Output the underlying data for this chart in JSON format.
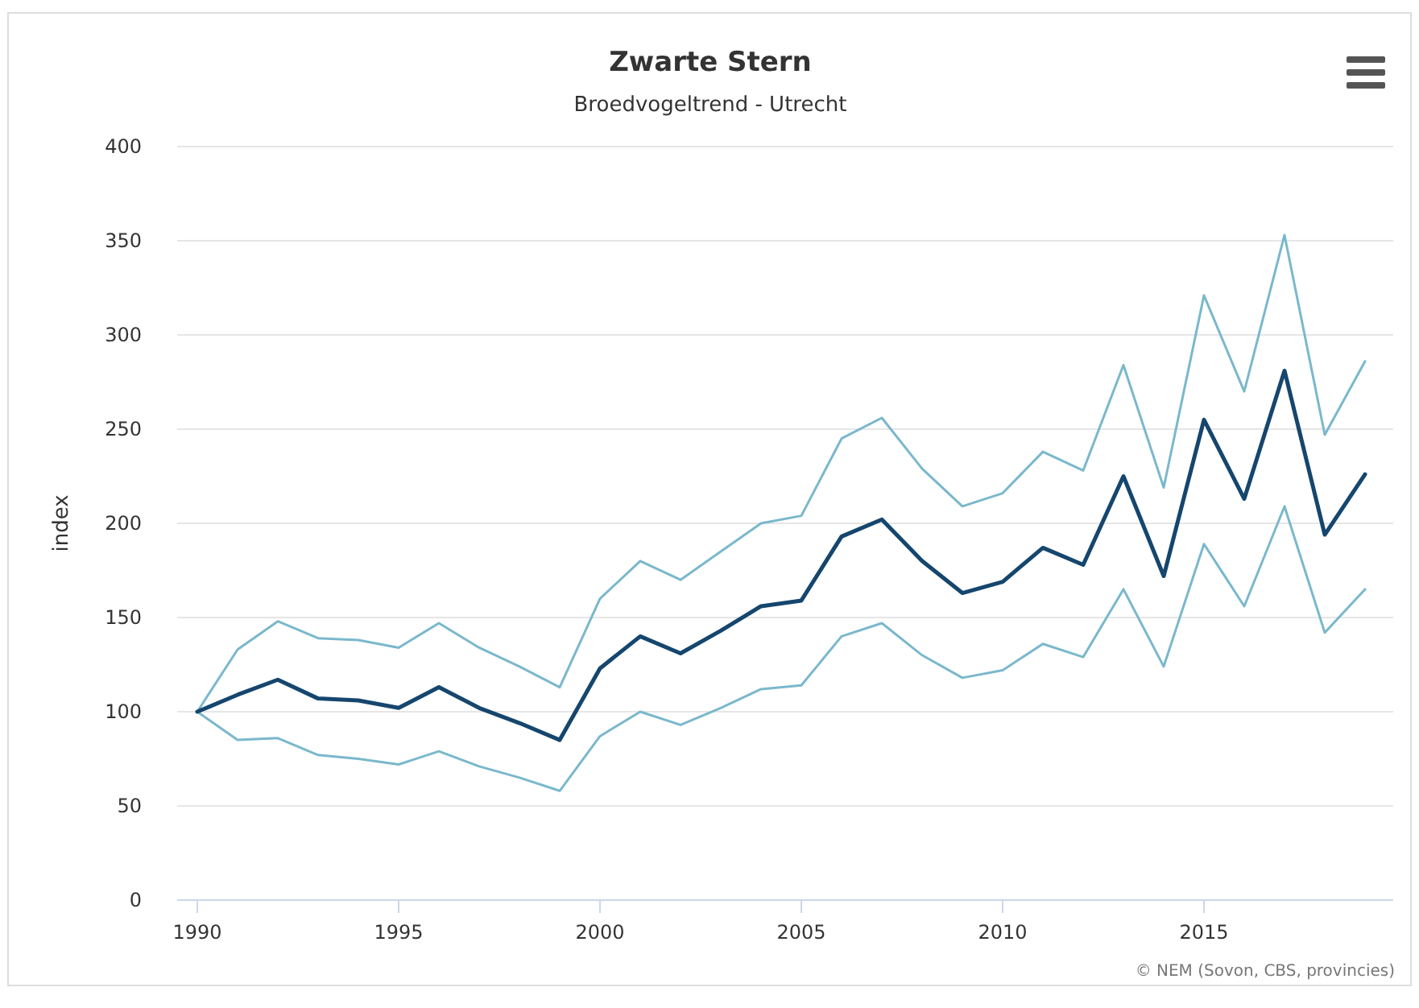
{
  "chart_data": {
    "type": "line",
    "title": "Zwarte Stern",
    "subtitle": "Broedvogeltrend - Utrecht",
    "ylabel": "index",
    "x": [
      1990,
      1991,
      1992,
      1993,
      1994,
      1995,
      1996,
      1997,
      1998,
      1999,
      2000,
      2001,
      2002,
      2003,
      2004,
      2005,
      2006,
      2007,
      2008,
      2009,
      2010,
      2011,
      2012,
      2013,
      2014,
      2015,
      2016,
      2017,
      2018,
      2019
    ],
    "series": [
      {
        "color": "#7ab8cc",
        "values": [
          100,
          133,
          148,
          139,
          138,
          134,
          147,
          134,
          124,
          113,
          160,
          180,
          170,
          185,
          200,
          204,
          245,
          256,
          229,
          209,
          216,
          238,
          228,
          284,
          219,
          321,
          270,
          353,
          247,
          286
        ]
      },
      {
        "color": "#7ab8cc",
        "values": [
          100,
          85,
          86,
          77,
          75,
          72,
          79,
          71,
          65,
          58,
          87,
          100,
          93,
          102,
          112,
          114,
          140,
          147,
          130,
          118,
          122,
          136,
          129,
          165,
          124,
          189,
          156,
          209,
          142,
          165
        ]
      },
      {
        "color": "#15466e",
        "values": [
          100,
          109,
          117,
          107,
          106,
          102,
          113,
          102,
          94,
          85,
          123,
          140,
          131,
          143,
          156,
          159,
          193,
          202,
          180,
          163,
          169,
          187,
          178,
          225,
          172,
          255,
          213,
          281,
          194,
          226
        ]
      }
    ],
    "xlim": [
      1989.5,
      2019.7
    ],
    "xticks": [
      1990,
      1995,
      2000,
      2005,
      2010,
      2015
    ],
    "ylim": [
      0,
      400
    ],
    "yticks": [
      0,
      50,
      100,
      150,
      200,
      250,
      300,
      350,
      400
    ],
    "grid": "y",
    "marker": "none",
    "line_style": "solid",
    "annotations": [
      "© NEM (Sovon, CBS, provincies)"
    ]
  }
}
